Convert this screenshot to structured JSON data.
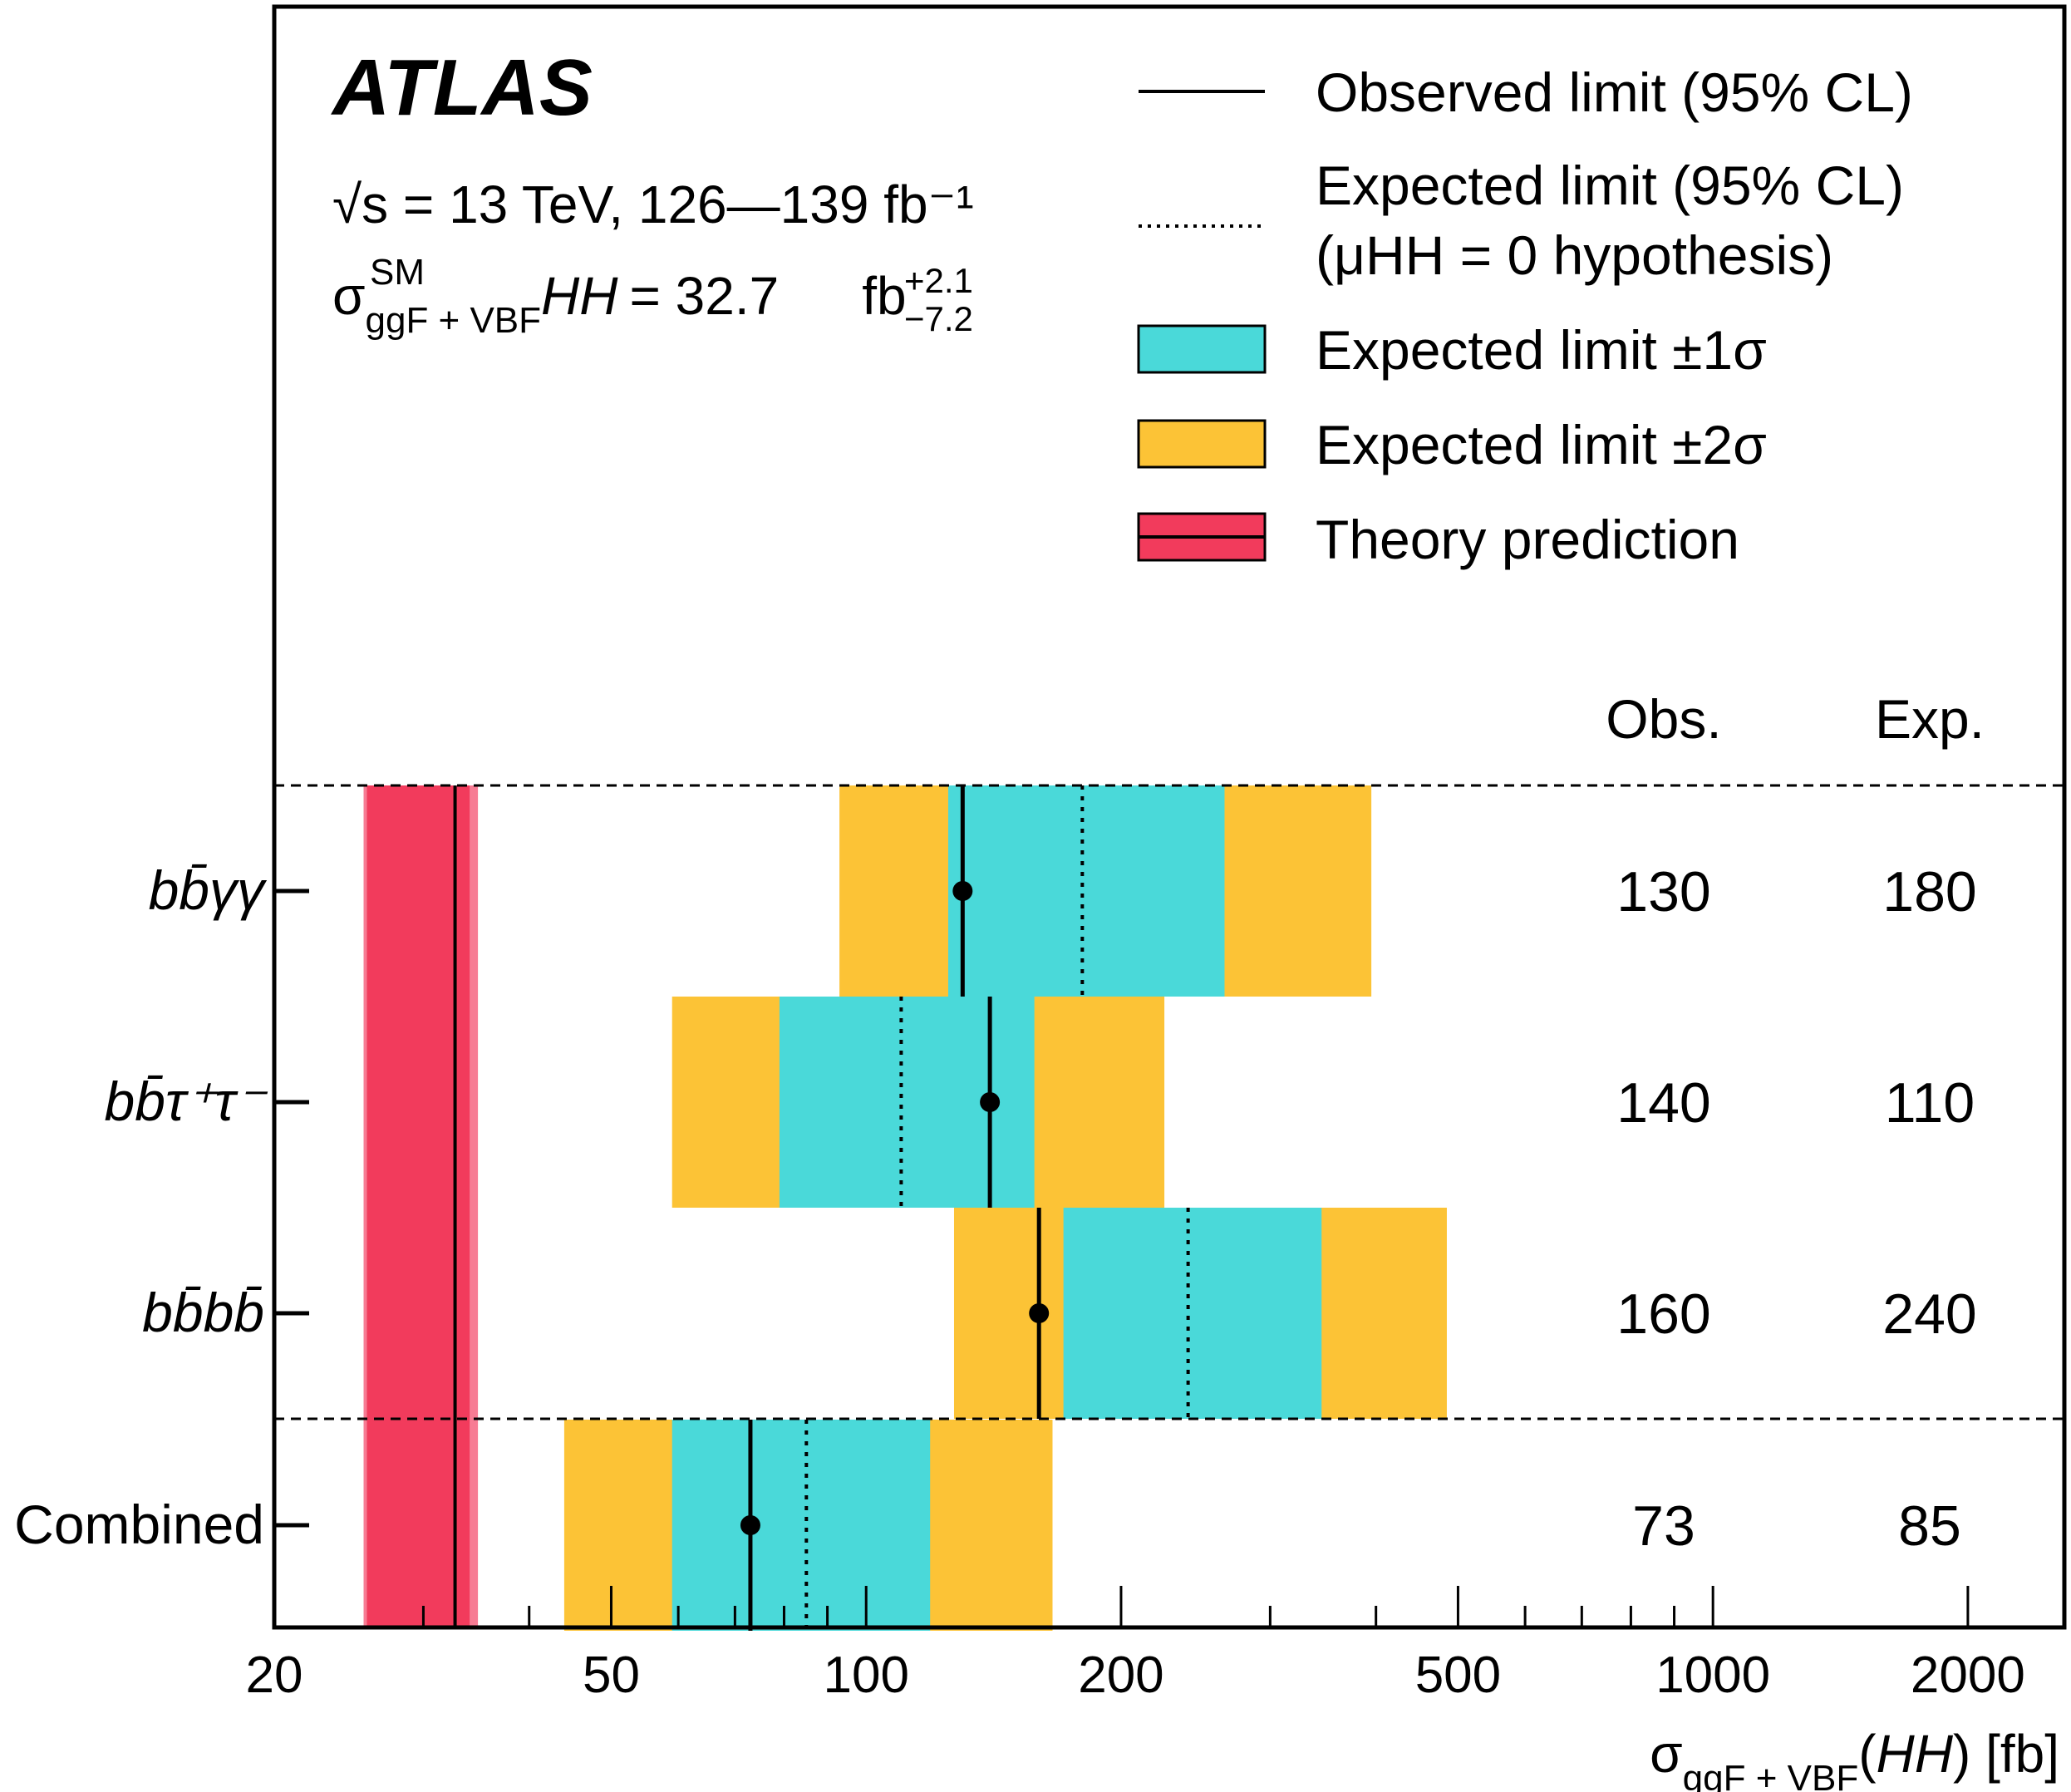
{
  "chart_data": {
    "type": "interval",
    "experiment": "ATLAS",
    "energy_label": "√s = 13 TeV, 126—139 fb⁻¹",
    "xsec_label": "σ(HH) = 32.7 fb",
    "xsec_symbol": "σ",
    "xsec_sub": "ggF + VBF",
    "xsec_sup": "SM",
    "xsec_hh": "HH",
    "xsec_eq": "= 32.7",
    "xsec_up": "+2.1",
    "xsec_down": "−7.2",
    "xsec_unit": "fb",
    "xlabel": "σggF + VBF(HH) [fb]",
    "xlabel_sigma": "σ",
    "xlabel_sub": "ggF + VBF",
    "xlabel_hh": "HH",
    "xlabel_unit": "[fb]",
    "xscale": "log",
    "xlim": [
      20,
      2600
    ],
    "xticks": [
      20,
      50,
      100,
      200,
      500,
      1000,
      2000
    ],
    "xtick_labels": [
      "20",
      "50",
      "100",
      "200",
      "500",
      "1000",
      "2000"
    ],
    "legend_position": "top-right",
    "legend": [
      {
        "label": "Observed limit (95% CL)",
        "style": "solid-line"
      },
      {
        "label": "Expected limit (95% CL)",
        "label2": "(μHH = 0 hypothesis)",
        "style": "dotted-line"
      },
      {
        "label": "Expected limit ±1σ",
        "style": "band",
        "color": "#4ad9d9"
      },
      {
        "label": "Expected limit ±2σ",
        "style": "band",
        "color": "#fcc336"
      },
      {
        "label": "Theory prediction",
        "style": "theory",
        "color": "#f23b5c"
      }
    ],
    "column_headers": {
      "obs": "Obs.",
      "exp": "Exp."
    },
    "theory": {
      "central": 32.7,
      "low": 25.5,
      "high": 34.8
    },
    "rows": [
      {
        "label": "bb̄γγ",
        "observed": 130,
        "expected": 180,
        "band1": [
          125,
          265
        ],
        "band2": [
          93,
          395
        ],
        "obs_text": "130",
        "exp_text": "180"
      },
      {
        "label": "bb̄τ⁺τ⁻",
        "observed": 140,
        "expected": 110,
        "band1": [
          79,
          158
        ],
        "band2": [
          59,
          225
        ],
        "obs_text": "140",
        "exp_text": "110"
      },
      {
        "label": "bb̄bb̄",
        "observed": 160,
        "expected": 240,
        "band1": [
          171,
          345
        ],
        "band2": [
          127,
          485
        ],
        "obs_text": "160",
        "exp_text": "240"
      },
      {
        "label": "Combined",
        "observed": 73,
        "expected": 85,
        "band1": [
          59,
          119
        ],
        "band2": [
          44,
          166
        ],
        "obs_text": "73",
        "exp_text": "85"
      }
    ],
    "colors": {
      "band1": "#4ad9d9",
      "band2": "#fcc336",
      "theory": "#f23b5c",
      "theory_edge": "#f77c94"
    }
  }
}
